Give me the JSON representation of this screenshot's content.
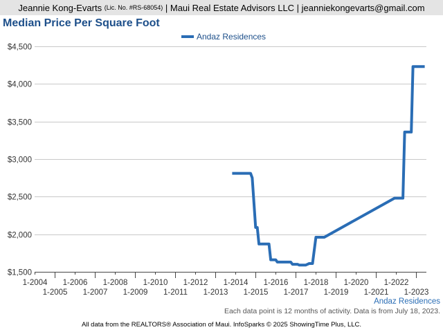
{
  "header": {
    "name": "Jeannie Kong-Evarts",
    "license": "(Lic. No. #RS-68054)",
    "rest": "| Maui Real Estate Advisors LLC | jeanniekongevarts@gmail.com"
  },
  "footer": {
    "note": "Each data point is 12 months of activity. Data is from July 18, 2023.",
    "copyright": "All data from the REALTORS® Association of Maui. InfoSparks © 2025 ShowingTime Plus, LLC."
  },
  "chart_data": {
    "type": "line",
    "title": "Median Price Per Square Foot",
    "xlabel": "",
    "ylabel": "",
    "y_ticks": [
      "$1,500",
      "$2,000",
      "$2,500",
      "$3,000",
      "$3,500",
      "$4,000",
      "$4,500"
    ],
    "ylim": [
      1500,
      4500
    ],
    "x_ticks_row1": [
      "1-2004",
      "1-2006",
      "1-2008",
      "1-2010",
      "1-2012",
      "1-2014",
      "1-2016",
      "1-2018",
      "1-2020",
      "1-2022"
    ],
    "x_ticks_row2": [
      "1-2005",
      "1-2007",
      "1-2009",
      "1-2011",
      "1-2013",
      "1-2015",
      "1-2017",
      "1-2019",
      "1-2021",
      "1-2023"
    ],
    "xlim": [
      "2004-01",
      "2023-07"
    ],
    "grid": true,
    "legend_position": "top-center",
    "series": [
      {
        "name": "Andaz Residences",
        "color": "#2a6db5",
        "end_label": "Andaz Residences",
        "points": [
          [
            "2013-11",
            2810
          ],
          [
            "2014-10",
            2810
          ],
          [
            "2014-11",
            2750
          ],
          [
            "2015-01",
            2090
          ],
          [
            "2015-02",
            2090
          ],
          [
            "2015-03",
            1870
          ],
          [
            "2015-09",
            1870
          ],
          [
            "2015-10",
            1660
          ],
          [
            "2016-01",
            1660
          ],
          [
            "2016-02",
            1630
          ],
          [
            "2016-10",
            1630
          ],
          [
            "2016-11",
            1600
          ],
          [
            "2017-02",
            1600
          ],
          [
            "2017-03",
            1590
          ],
          [
            "2017-07",
            1590
          ],
          [
            "2017-08",
            1600
          ],
          [
            "2017-09",
            1610
          ],
          [
            "2017-11",
            1610
          ],
          [
            "2018-01",
            1960
          ],
          [
            "2018-06",
            1960
          ],
          [
            "2021-12",
            2480
          ],
          [
            "2022-05",
            2480
          ],
          [
            "2022-06",
            3360
          ],
          [
            "2022-10",
            3360
          ],
          [
            "2022-11",
            4230
          ],
          [
            "2023-06",
            4230
          ]
        ]
      }
    ]
  }
}
